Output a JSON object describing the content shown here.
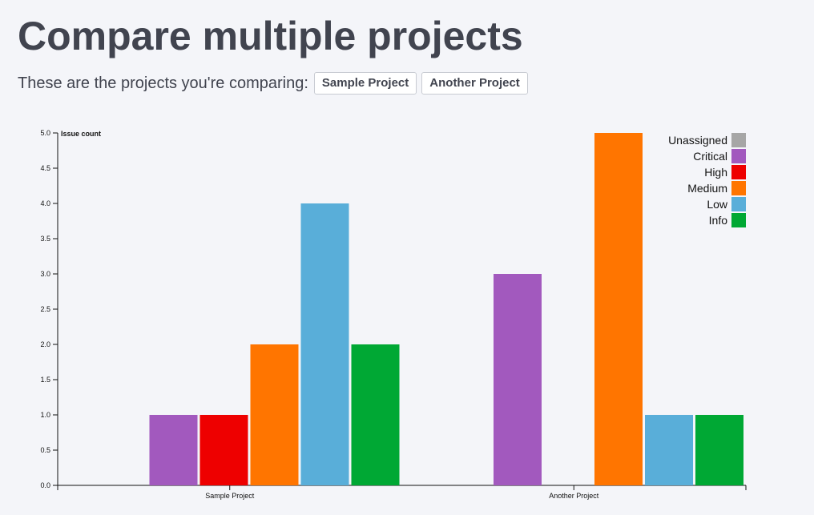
{
  "page": {
    "title": "Compare multiple projects",
    "comparing_text": "These are the projects you're comparing:",
    "projects": [
      {
        "label": "Sample Project"
      },
      {
        "label": "Another Project"
      }
    ]
  },
  "chart_data": {
    "type": "bar",
    "title": "",
    "ylabel": "Issue count",
    "xlabel": "",
    "categories": [
      "Sample Project",
      "Another Project"
    ],
    "ylim": [
      0,
      5
    ],
    "yticks": [
      "0.0",
      "0.5",
      "1.0",
      "1.5",
      "2.0",
      "2.5",
      "3.0",
      "3.5",
      "4.0",
      "4.5",
      "5.0"
    ],
    "legend_position": "top-right",
    "series": [
      {
        "name": "Unassigned",
        "color": "#a6a6a6",
        "values": [
          0,
          0
        ]
      },
      {
        "name": "Critical",
        "color": "#a259be",
        "values": [
          1,
          3
        ]
      },
      {
        "name": "High",
        "color": "#ee0000",
        "values": [
          1,
          0
        ]
      },
      {
        "name": "Medium",
        "color": "#ff7500",
        "values": [
          2,
          5
        ]
      },
      {
        "name": "Low",
        "color": "#59aed9",
        "values": [
          4,
          1
        ]
      },
      {
        "name": "Info",
        "color": "#00a834",
        "values": [
          2,
          1
        ]
      }
    ]
  }
}
